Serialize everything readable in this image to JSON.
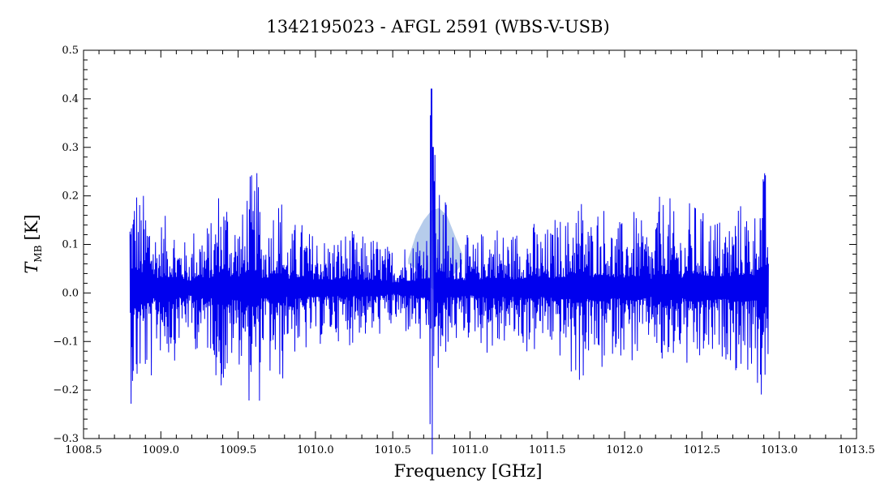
{
  "chart_data": {
    "type": "line",
    "title": "1342195023 - AFGL 2591 (WBS-V-USB)",
    "xlabel": "Frequency [GHz]",
    "ylabel_main": "T",
    "ylabel_sub": "MB",
    "ylabel_unit": "[K]",
    "xlim": [
      1008.5,
      1013.5
    ],
    "ylim": [
      -0.3,
      0.5
    ],
    "x_ticks": [
      1008.5,
      1009.0,
      1009.5,
      1010.0,
      1010.5,
      1011.0,
      1011.5,
      1012.0,
      1012.5,
      1013.0,
      1013.5
    ],
    "x_tick_labels": [
      "1008.5",
      "1009.0",
      "1009.5",
      "1010.0",
      "1010.5",
      "1011.0",
      "1011.5",
      "1012.0",
      "1012.5",
      "1013.0",
      "1013.5"
    ],
    "y_ticks": [
      -0.3,
      -0.2,
      -0.1,
      0.0,
      0.1,
      0.2,
      0.3,
      0.4,
      0.5
    ],
    "y_tick_labels": [
      "−0.3",
      "−0.2",
      "−0.1",
      "0.0",
      "0.1",
      "0.2",
      "0.3",
      "0.4",
      "0.5"
    ],
    "grid": false,
    "series_color": "#0000ee",
    "band_color": "#8fb0e0",
    "series": [
      {
        "x": [
          1008.8,
          1008.85,
          1008.9,
          1008.95,
          1009.0,
          1009.05,
          1009.1,
          1009.15,
          1009.2,
          1009.25,
          1009.3,
          1009.35,
          1009.4,
          1009.45,
          1009.5,
          1009.55,
          1009.6,
          1009.65,
          1009.7,
          1009.75,
          1009.8,
          1009.85,
          1009.9,
          1009.95,
          1010.0,
          1010.05,
          1010.1,
          1010.15,
          1010.2,
          1010.25,
          1010.3,
          1010.35,
          1010.4,
          1010.45,
          1010.5,
          1010.55,
          1010.6,
          1010.65,
          1010.7,
          1010.74,
          1010.75,
          1010.76,
          1010.78,
          1010.8,
          1010.85,
          1010.9,
          1010.95,
          1011.0,
          1011.05,
          1011.1,
          1011.15,
          1011.2,
          1011.25,
          1011.3,
          1011.35,
          1011.4,
          1011.45,
          1011.5,
          1011.55,
          1011.6,
          1011.65,
          1011.7,
          1011.75,
          1011.8,
          1011.85,
          1011.9,
          1011.95,
          1012.0,
          1012.05,
          1012.1,
          1012.15,
          1012.2,
          1012.25,
          1012.3,
          1012.35,
          1012.4,
          1012.45,
          1012.5,
          1012.55,
          1012.6,
          1012.65,
          1012.7,
          1012.75,
          1012.8,
          1012.85,
          1012.9,
          1012.93
        ],
        "y": [
          0.24,
          -0.12,
          0.2,
          -0.14,
          0.1,
          -0.15,
          0.12,
          -0.1,
          0.09,
          -0.13,
          0.14,
          -0.09,
          0.22,
          -0.11,
          0.16,
          -0.08,
          0.24,
          -0.14,
          0.09,
          -0.2,
          0.12,
          -0.12,
          0.14,
          -0.09,
          0.12,
          -0.1,
          0.11,
          -0.08,
          0.12,
          -0.1,
          0.08,
          -0.11,
          0.1,
          -0.09,
          0.07,
          -0.08,
          0.1,
          -0.05,
          0.13,
          0.05,
          0.42,
          0.3,
          0.15,
          0.2,
          0.08,
          -0.12,
          0.11,
          -0.09,
          0.1,
          -0.12,
          0.14,
          -0.1,
          0.12,
          -0.11,
          0.13,
          -0.14,
          0.12,
          -0.1,
          0.13,
          -0.15,
          0.11,
          -0.2,
          0.15,
          -0.12,
          0.18,
          -0.1,
          0.14,
          -0.13,
          0.16,
          -0.14,
          0.12,
          -0.11,
          0.19,
          -0.16,
          0.14,
          -0.12,
          0.18,
          -0.13,
          0.16,
          -0.14,
          0.15,
          -0.11,
          0.18,
          -0.12,
          0.17,
          -0.25,
          0.13
        ]
      }
    ],
    "band": {
      "x": [
        1010.6,
        1010.65,
        1010.7,
        1010.75,
        1010.8,
        1010.85,
        1010.9,
        1010.95
      ],
      "upper": [
        0.07,
        0.12,
        0.15,
        0.17,
        0.175,
        0.16,
        0.12,
        0.08
      ],
      "lower": [
        0.06,
        0.05,
        0.03,
        0.01,
        0.0,
        0.02,
        0.04,
        0.06
      ]
    }
  }
}
